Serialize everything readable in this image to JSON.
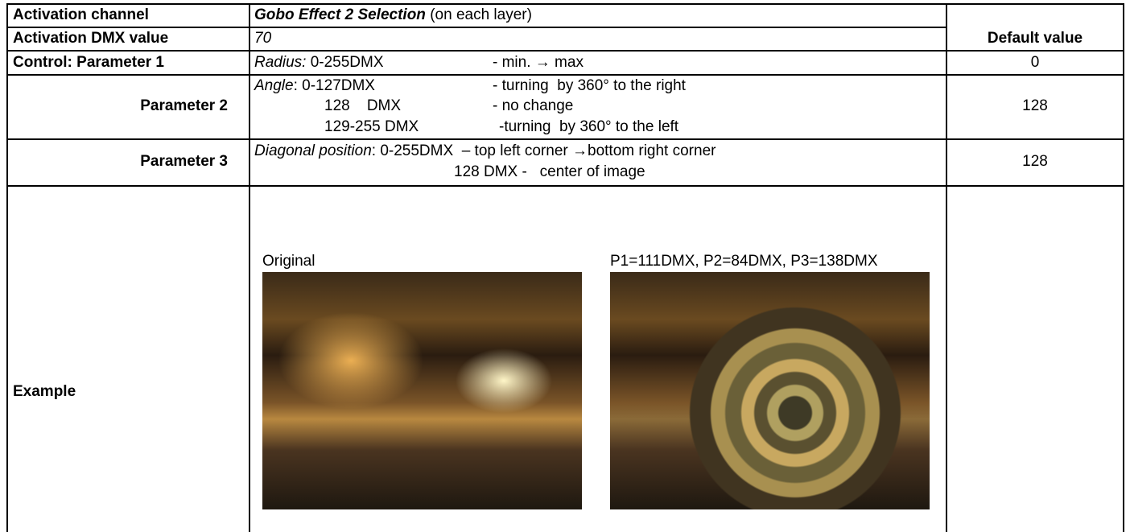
{
  "default_header": "Default value",
  "activation_channel": {
    "label": "Activation channel",
    "value": "Gobo Effect 2 Selection",
    "note": "(on each layer)"
  },
  "activation_dmx": {
    "label": "Activation DMX value",
    "value": "70"
  },
  "parameter_1": {
    "label": "Control: Parameter 1",
    "name": "Radius:",
    "range": "0-255DMX",
    "effect": "- min. → max",
    "default": "0"
  },
  "parameter_2": {
    "label": "Parameter 2",
    "name": "Angle",
    "lines": [
      {
        "range": ": 0-127DMX",
        "effect": "- turning  by 360° to the right"
      },
      {
        "range": "128    DMX",
        "effect": "- no change"
      },
      {
        "range": "129-255 DMX",
        "effect": "-turning  by 360° to the left"
      }
    ],
    "default": "128"
  },
  "parameter_3": {
    "label": "Parameter 3",
    "name": "Diagonal position",
    "range": ": 0-255DMX",
    "effect": "– top left corner →bottom right corner",
    "line2": "128 DMX -   center of image",
    "default": "128"
  },
  "example": {
    "label": "Example",
    "images": [
      {
        "caption": "Original"
      },
      {
        "caption": "P1=111DMX, P2=84DMX, P3=138DMX"
      }
    ]
  }
}
